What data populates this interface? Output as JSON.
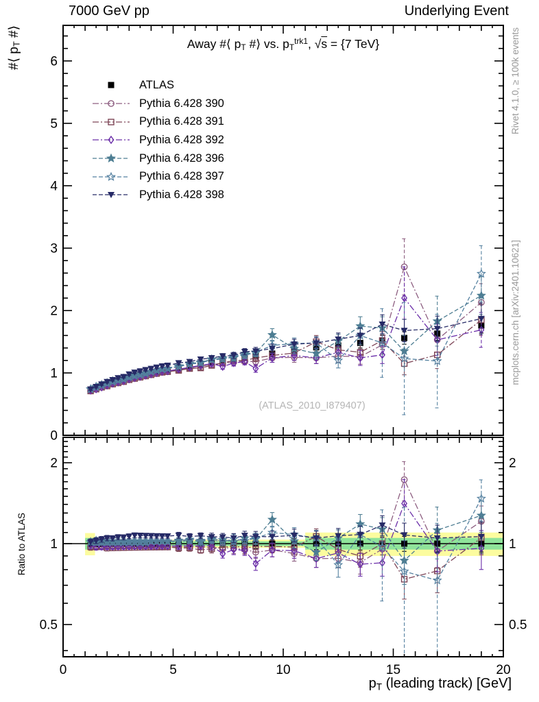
{
  "header": {
    "left": "7000 GeV pp",
    "right": "Underlying Event"
  },
  "titles": {
    "main": [
      {
        "t": "Away #⟨ p"
      },
      {
        "t": "T",
        "m": "sub"
      },
      {
        "t": " #⟩ vs. p"
      },
      {
        "t": "T",
        "m": "sub"
      },
      {
        "t": "trk1",
        "m": "sup"
      },
      {
        "t": ", √"
      },
      {
        "t": "s",
        "m": "over"
      },
      {
        "t": " = {7 TeV}"
      }
    ],
    "y_main": [
      {
        "t": "#⟨ p"
      },
      {
        "t": "T",
        "m": "sub"
      },
      {
        "t": " #⟩"
      }
    ],
    "y_ratio": [
      {
        "t": "Ratio to ATLAS"
      }
    ],
    "x": [
      {
        "t": "p"
      },
      {
        "t": "T",
        "m": "sub"
      },
      {
        "t": " (leading track) [GeV]"
      }
    ]
  },
  "watermark": {
    "text": "(ATLAS_2010_I879407)"
  },
  "credits": {
    "rivet": "Rivet 4.1.0, ≥ 100k events",
    "mcplots": "mcplots.cern.ch [arXiv:2401.10621]"
  },
  "colors": {
    "axis": "#000000",
    "credit_gray": "#9a9a9a",
    "watermark_gray": "#b5b5b5",
    "band_yellow": "#fcfc9f",
    "band_green": "#8fe39a"
  },
  "chart_data": {
    "type": "scatter",
    "title": "Away #< pT #> vs. pT trk1, sqrt(s) = {7 TeV}",
    "xlabel": "pT (leading track) [GeV]",
    "ylabel_main": "#< pT #>",
    "ylabel_ratio": "Ratio to ATLAS",
    "xlim": [
      0,
      20
    ],
    "ylim_main": [
      0,
      6.57
    ],
    "ylim_ratio_log": [
      0.379,
      2.49
    ],
    "x_ticks": [
      0,
      5,
      10,
      15,
      20
    ],
    "y_ticks_main": [
      0,
      1,
      2,
      3,
      4,
      5,
      6
    ],
    "y_ticks_ratio": [
      "0.5",
      "1",
      "2"
    ],
    "legend_position": "top-left-inside",
    "x": [
      1.25,
      1.5,
      1.75,
      2,
      2.25,
      2.5,
      2.75,
      3,
      3.25,
      3.5,
      3.75,
      4,
      4.25,
      4.5,
      4.75,
      5.25,
      5.75,
      6.25,
      6.75,
      7.25,
      7.75,
      8.25,
      8.75,
      9.5,
      10.5,
      11.5,
      12.5,
      13.5,
      14.5,
      15.5,
      17,
      19
    ],
    "series": [
      {
        "id": "atlas",
        "label": "ATLAS",
        "color": "#000000",
        "marker": "square-filled",
        "line": "none",
        "values": [
          0.73,
          0.76,
          0.79,
          0.82,
          0.85,
          0.87,
          0.89,
          0.92,
          0.94,
          0.96,
          0.98,
          1.0,
          1.02,
          1.04,
          1.05,
          1.08,
          1.11,
          1.14,
          1.17,
          1.2,
          1.22,
          1.25,
          1.27,
          1.31,
          1.36,
          1.41,
          1.44,
          1.48,
          1.52,
          1.56,
          1.63,
          1.76
        ],
        "errors": [
          0.02,
          0.02,
          0.02,
          0.02,
          0.02,
          0.02,
          0.02,
          0.02,
          0.02,
          0.02,
          0.02,
          0.02,
          0.02,
          0.02,
          0.02,
          0.03,
          0.03,
          0.03,
          0.04,
          0.04,
          0.04,
          0.05,
          0.05,
          0.05,
          0.06,
          0.07,
          0.07,
          0.08,
          0.09,
          0.1,
          0.11,
          0.12
        ]
      },
      {
        "id": "p390",
        "label": "Pythia 6.428 390",
        "color": "#8d5e80",
        "marker": "circle-open",
        "line": "dashdot",
        "values": [
          0.71,
          0.74,
          0.77,
          0.8,
          0.83,
          0.85,
          0.87,
          0.9,
          0.92,
          0.94,
          0.96,
          0.98,
          0.99,
          1.01,
          1.02,
          1.05,
          1.08,
          1.11,
          1.13,
          1.16,
          1.17,
          1.19,
          1.18,
          1.24,
          1.25,
          1.24,
          1.27,
          1.26,
          1.45,
          2.7,
          1.53,
          2.13
        ],
        "errors": [
          0.02,
          0.02,
          0.02,
          0.02,
          0.02,
          0.02,
          0.02,
          0.02,
          0.02,
          0.02,
          0.02,
          0.02,
          0.02,
          0.02,
          0.02,
          0.03,
          0.03,
          0.03,
          0.04,
          0.04,
          0.05,
          0.05,
          0.06,
          0.07,
          0.08,
          0.09,
          0.1,
          0.12,
          0.15,
          0.45,
          0.2,
          0.3
        ]
      },
      {
        "id": "p391",
        "label": "Pythia 6.428 391",
        "color": "#7d4456",
        "marker": "square-open",
        "line": "dashdot",
        "values": [
          0.71,
          0.74,
          0.77,
          0.79,
          0.82,
          0.84,
          0.86,
          0.89,
          0.91,
          0.93,
          0.95,
          0.97,
          0.99,
          1.01,
          1.02,
          1.04,
          1.07,
          1.08,
          1.12,
          1.16,
          1.2,
          1.2,
          1.24,
          1.28,
          1.32,
          1.5,
          1.37,
          1.33,
          1.52,
          1.15,
          1.29,
          1.85
        ],
        "errors": [
          0.02,
          0.02,
          0.02,
          0.02,
          0.02,
          0.02,
          0.02,
          0.02,
          0.02,
          0.02,
          0.02,
          0.02,
          0.02,
          0.02,
          0.02,
          0.03,
          0.03,
          0.03,
          0.04,
          0.04,
          0.05,
          0.05,
          0.06,
          0.07,
          0.08,
          0.1,
          0.1,
          0.12,
          0.14,
          0.18,
          0.22,
          0.25
        ]
      },
      {
        "id": "p392",
        "label": "Pythia 6.428 392",
        "color": "#6a2da8",
        "marker": "diamond-open",
        "line": "dashdot",
        "values": [
          0.72,
          0.74,
          0.77,
          0.8,
          0.83,
          0.85,
          0.87,
          0.9,
          0.92,
          0.94,
          0.96,
          0.98,
          1.0,
          1.02,
          1.03,
          1.06,
          1.09,
          1.12,
          1.15,
          1.1,
          1.16,
          1.18,
          1.07,
          1.24,
          1.28,
          1.24,
          1.33,
          1.24,
          1.29,
          2.2,
          1.53,
          1.69
        ],
        "errors": [
          0.02,
          0.02,
          0.02,
          0.02,
          0.02,
          0.02,
          0.02,
          0.02,
          0.02,
          0.02,
          0.02,
          0.02,
          0.02,
          0.02,
          0.02,
          0.03,
          0.03,
          0.03,
          0.04,
          0.04,
          0.05,
          0.05,
          0.06,
          0.07,
          0.08,
          0.09,
          0.1,
          0.12,
          0.14,
          0.5,
          0.25,
          0.28
        ]
      },
      {
        "id": "p396",
        "label": "Pythia 6.428 396",
        "color": "#4d7d92",
        "marker": "star-filled",
        "line": "dash",
        "values": [
          0.74,
          0.78,
          0.81,
          0.84,
          0.87,
          0.89,
          0.91,
          0.94,
          0.96,
          0.98,
          1.0,
          1.02,
          1.04,
          1.06,
          1.07,
          1.11,
          1.15,
          1.17,
          1.22,
          1.24,
          1.24,
          1.31,
          1.32,
          1.61,
          1.39,
          1.31,
          1.51,
          1.75,
          1.72,
          1.35,
          1.83,
          2.24
        ],
        "errors": [
          0.02,
          0.02,
          0.02,
          0.02,
          0.02,
          0.02,
          0.02,
          0.02,
          0.02,
          0.02,
          0.02,
          0.02,
          0.02,
          0.02,
          0.02,
          0.03,
          0.03,
          0.04,
          0.04,
          0.04,
          0.05,
          0.05,
          0.06,
          0.1,
          0.08,
          0.09,
          0.11,
          0.15,
          0.18,
          0.25,
          0.4,
          0.3
        ]
      },
      {
        "id": "p397",
        "label": "Pythia 6.428 397",
        "color": "#5581a0",
        "marker": "star-open",
        "line": "dash",
        "values": [
          0.74,
          0.77,
          0.8,
          0.83,
          0.86,
          0.88,
          0.9,
          0.93,
          0.95,
          0.97,
          0.99,
          1.02,
          1.04,
          1.06,
          1.07,
          1.1,
          1.14,
          1.16,
          1.21,
          1.22,
          1.27,
          1.28,
          1.33,
          1.44,
          1.47,
          1.48,
          1.2,
          1.6,
          1.48,
          1.23,
          1.19,
          2.59
        ],
        "errors": [
          0.02,
          0.02,
          0.02,
          0.02,
          0.02,
          0.02,
          0.02,
          0.02,
          0.02,
          0.02,
          0.02,
          0.02,
          0.02,
          0.02,
          0.02,
          0.03,
          0.03,
          0.04,
          0.04,
          0.04,
          0.05,
          0.05,
          0.06,
          0.08,
          0.09,
          0.1,
          0.12,
          0.15,
          0.55,
          0.9,
          0.75,
          0.45
        ]
      },
      {
        "id": "p398",
        "label": "Pythia 6.428 398",
        "color": "#262a66",
        "marker": "triangle-down-filled",
        "line": "dash",
        "values": [
          0.74,
          0.78,
          0.82,
          0.86,
          0.89,
          0.92,
          0.94,
          0.98,
          1.01,
          1.03,
          1.05,
          1.07,
          1.09,
          1.11,
          1.12,
          1.16,
          1.18,
          1.22,
          1.24,
          1.27,
          1.28,
          1.34,
          1.35,
          1.39,
          1.46,
          1.48,
          1.54,
          1.6,
          1.78,
          1.68,
          1.71,
          1.87
        ],
        "errors": [
          0.02,
          0.02,
          0.02,
          0.02,
          0.02,
          0.02,
          0.02,
          0.02,
          0.02,
          0.02,
          0.02,
          0.02,
          0.02,
          0.02,
          0.02,
          0.03,
          0.03,
          0.03,
          0.04,
          0.04,
          0.05,
          0.05,
          0.06,
          0.07,
          0.08,
          0.09,
          0.1,
          0.12,
          0.15,
          0.18,
          0.2,
          0.25
        ]
      }
    ],
    "ratio_band": [
      {
        "x1": 1.0,
        "x2": 1.45,
        "yellow": 0.095,
        "green": 0.05
      },
      {
        "x1": 1.45,
        "x2": 11.0,
        "yellow": 0.035,
        "green": 0.02
      },
      {
        "x1": 11.0,
        "x2": 20.0,
        "yellow": 0.1,
        "green": 0.05
      }
    ]
  }
}
